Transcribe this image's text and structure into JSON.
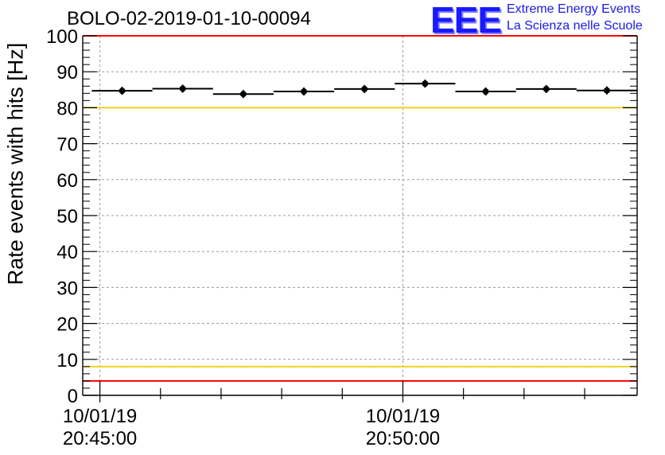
{
  "chart_data": {
    "type": "scatter",
    "title": "BOLO-02-2019-01-10-00094",
    "xlabel": "",
    "ylabel": "Rate events with hits [Hz]",
    "ylim": [
      0,
      100
    ],
    "yticks": [
      "0",
      "10",
      "20",
      "30",
      "40",
      "50",
      "60",
      "70",
      "80",
      "90",
      "100"
    ],
    "xticks": [
      {
        "date": "10/01/19",
        "time": "20:45:00"
      },
      {
        "date": "10/01/19",
        "time": "20:50:00"
      }
    ],
    "grid": true,
    "threshold_lines": [
      {
        "value": 100,
        "color": "#ff0000"
      },
      {
        "value": 80,
        "color": "#f2d21f"
      },
      {
        "value": 8,
        "color": "#f2d21f"
      },
      {
        "value": 4,
        "color": "#ff0000"
      }
    ],
    "points": [
      {
        "x": "20:45:22",
        "y": 84.7
      },
      {
        "x": "20:46:22",
        "y": 85.3
      },
      {
        "x": "20:47:22",
        "y": 83.8
      },
      {
        "x": "20:48:22",
        "y": 84.5
      },
      {
        "x": "20:49:22",
        "y": 85.2
      },
      {
        "x": "20:50:22",
        "y": 86.7
      },
      {
        "x": "20:51:22",
        "y": 84.5
      },
      {
        "x": "20:52:22",
        "y": 85.2
      },
      {
        "x": "20:53:22",
        "y": 84.8
      }
    ],
    "bin_width_s": 60,
    "x_range": [
      "20:44:43",
      "20:53:52"
    ],
    "marker_color": "#000000"
  },
  "logo": {
    "mark": "EEE",
    "line1": "Extreme Energy Events",
    "line2": "La Scienza nelle Scuole",
    "color": "#1a1ae6"
  }
}
